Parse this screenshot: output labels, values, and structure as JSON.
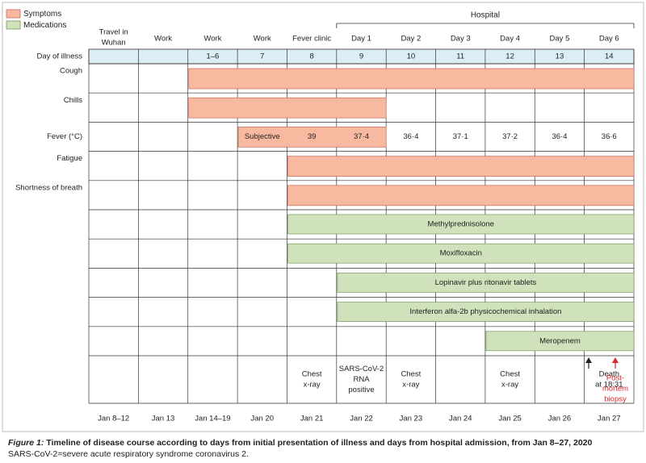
{
  "colors": {
    "symptom_fill": "#f8b9a0",
    "symptom_stroke": "#c86a55",
    "medication_fill": "#cfe2bb",
    "medication_stroke": "#78995c",
    "day_row_fill": "#dbeef6",
    "death_arrow": "#222222",
    "biopsy": "#d8262e",
    "grid": "#333333"
  },
  "legend": [
    {
      "label": "Symptoms",
      "kind": "symptom"
    },
    {
      "label": "Medications",
      "kind": "medication"
    }
  ],
  "hospital_label": "Hospital",
  "columns": [
    {
      "activity": [
        "Travel in",
        "Wuhan"
      ],
      "day_of_illness": "",
      "date": "Jan 8–12"
    },
    {
      "activity": [
        "Work"
      ],
      "day_of_illness": "",
      "date": "Jan 13"
    },
    {
      "activity": [
        "Work"
      ],
      "day_of_illness": "1–6",
      "date": "Jan 14–19"
    },
    {
      "activity": [
        "Work"
      ],
      "day_of_illness": "7",
      "date": "Jan 20"
    },
    {
      "activity": [
        "Fever clinic"
      ],
      "day_of_illness": "8",
      "date": "Jan 21"
    },
    {
      "activity": [
        "Day 1"
      ],
      "day_of_illness": "9",
      "date": "Jan 22"
    },
    {
      "activity": [
        "Day 2"
      ],
      "day_of_illness": "10",
      "date": "Jan 23"
    },
    {
      "activity": [
        "Day 3"
      ],
      "day_of_illness": "11",
      "date": "Jan 24"
    },
    {
      "activity": [
        "Day 4"
      ],
      "day_of_illness": "12",
      "date": "Jan 25"
    },
    {
      "activity": [
        "Day 5"
      ],
      "day_of_illness": "13",
      "date": "Jan 26"
    },
    {
      "activity": [
        "Day 6"
      ],
      "day_of_illness": "14",
      "date": "Jan 27"
    }
  ],
  "day_of_illness_label": "Day of illness",
  "rows": [
    {
      "label": "Cough",
      "bar": {
        "kind": "symptom",
        "start_col": 2,
        "end_col": 10,
        "text": ""
      }
    },
    {
      "label": "Chills",
      "bar": {
        "kind": "symptom",
        "start_col": 2,
        "end_col": 5,
        "text": ""
      }
    },
    {
      "label": "Fever (°C)",
      "fever": {
        "start_col": 3,
        "end_col": 5,
        "readings": [
          "Subjective",
          "39",
          "37·4",
          "36·4",
          "37·1",
          "37·2",
          "36·4",
          "36·6"
        ]
      }
    },
    {
      "label": "Fatigue",
      "bar": {
        "kind": "symptom",
        "start_col": 4,
        "end_col": 10,
        "text": ""
      }
    },
    {
      "label": "Shortness of breath",
      "bar": {
        "kind": "symptom",
        "start_col": 4,
        "end_col": 10,
        "text": ""
      }
    },
    {
      "label": "",
      "bar": {
        "kind": "medication",
        "start_col": 4,
        "end_col": 10,
        "text": "Methylprednisolone"
      }
    },
    {
      "label": "",
      "bar": {
        "kind": "medication",
        "start_col": 4,
        "end_col": 10,
        "text": "Moxifloxacin"
      }
    },
    {
      "label": "",
      "bar": {
        "kind": "medication",
        "start_col": 5,
        "end_col": 10,
        "text": "Lopinavir plus ritonavir tablets"
      }
    },
    {
      "label": "",
      "bar": {
        "kind": "medication",
        "start_col": 5,
        "end_col": 10,
        "text": "Interferon alfa-2b physicochemical inhalation"
      }
    },
    {
      "label": "",
      "bar": {
        "kind": "medication",
        "start_col": 8,
        "end_col": 10,
        "text": "Meropenem"
      }
    }
  ],
  "events": [
    {
      "col": 4,
      "lines": [
        "Chest",
        "x-ray"
      ]
    },
    {
      "col": 5,
      "lines": [
        "SARS-CoV-2",
        "RNA",
        "positive"
      ]
    },
    {
      "col": 6,
      "lines": [
        "Chest",
        "x-ray"
      ]
    },
    {
      "col": 8,
      "lines": [
        "Chest",
        "x-ray"
      ]
    },
    {
      "col": 10,
      "lines": [
        "Death",
        "at 18:31"
      ],
      "arrow": true
    }
  ],
  "biopsy": {
    "lines": [
      "Post-",
      "mortem",
      "biopsy"
    ]
  },
  "caption": {
    "lead": "Figure 1:",
    "title": " Timeline of disease course according to days from initial presentation of illness and days from hospital admission, from Jan 8–27, 2020",
    "note": "SARS-CoV-2=severe acute respiratory syndrome coronavirus 2."
  }
}
